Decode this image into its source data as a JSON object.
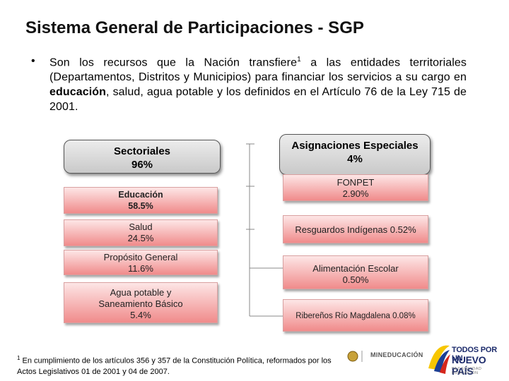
{
  "title": "Sistema General de Participaciones - SGP",
  "bullet": {
    "marker": "•",
    "text_part1": "Son los recursos que la Nación transfiere",
    "sup": "1",
    "text_part2": " a las entidades territoriales (Departamentos, Distritos y Municipios) para financiar los servicios a su cargo en ",
    "bold_word": "educación",
    "text_part3": ", salud, agua potable y los definidos en el Artículo 76 de la Ley 715 de 2001."
  },
  "sectoriales": {
    "label": "Sectoriales",
    "percent": "96%",
    "items": [
      {
        "label": "Educación",
        "percent": "58.5%"
      },
      {
        "label": "Salud",
        "percent": "24.5%"
      },
      {
        "label": "Propósito General",
        "percent": "11.6%"
      },
      {
        "label_line1": "Agua potable y",
        "label_line2": "Saneamiento Básico",
        "percent": "5.4%"
      }
    ]
  },
  "asignaciones": {
    "label": "Asignaciones Especiales",
    "percent": "4%",
    "items": [
      {
        "label": "FONPET",
        "percent": "2.90%"
      },
      {
        "text": "Resguardos Indígenas 0.52%"
      },
      {
        "label": "Alimentación Escolar",
        "percent": "0.50%"
      },
      {
        "text": "Ribereños Río Magdalena 0.08%"
      }
    ]
  },
  "footnote": {
    "sup": "1",
    "text": " En cumplimiento de los artículos 356 y 357 de la Constitución Política, reformados por los Actos Legislativos 01 de 2001 y 04 de 2007."
  },
  "logos": {
    "mineducacion": "MINEDUCACIÓN",
    "gov_line1": "TODOS POR UN",
    "gov_line2": "NUEVO PAÍS",
    "gov_line3": "PAZ  EQUIDAD  EDUCACIÓN"
  },
  "colors": {
    "item_fill_top": "#fde6e6",
    "item_fill_bottom": "#f08b8b",
    "header_fill": "#d9d9d9",
    "connector": "#888888"
  }
}
